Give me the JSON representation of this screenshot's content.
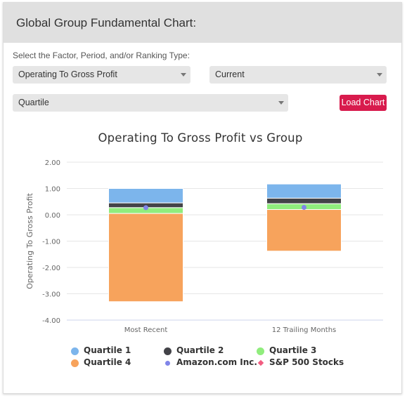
{
  "header": {
    "title": "Global Group Fundamental Chart:"
  },
  "controls": {
    "prompt": "Select the Factor, Period, and/or Ranking Type:",
    "factor_select": {
      "value": "Operating To Gross Profit"
    },
    "period_select": {
      "value": "Current"
    },
    "ranking_select": {
      "value": "Quartile"
    },
    "load_button": "Load Chart"
  },
  "colors": {
    "q1": "#7cb5ec",
    "q2": "#434348",
    "q3": "#90ed7d",
    "q4": "#f7a35c",
    "amazon": "#8085e9",
    "sp500": "#f15c80",
    "button": "#d81b4d"
  },
  "legend": [
    {
      "label": "Quartile 1",
      "color": "#7cb5ec",
      "marker": "circle"
    },
    {
      "label": "Quartile 2",
      "color": "#434348",
      "marker": "circle"
    },
    {
      "label": "Quartile 3",
      "color": "#90ed7d",
      "marker": "circle"
    },
    {
      "label": "Quartile 4",
      "color": "#f7a35c",
      "marker": "circle"
    },
    {
      "label": "Amazon.com Inc.",
      "color": "#8085e9",
      "marker": "dot"
    },
    {
      "label": "S&P 500 Stocks",
      "color": "#f15c80",
      "marker": "diamond"
    }
  ],
  "chart_data": {
    "type": "bar",
    "title": "Operating To Gross Profit vs Group",
    "ylabel": "Operating To Gross Profit",
    "xlabel": "",
    "ylim": [
      -4,
      2
    ],
    "yticks": [
      "2.00",
      "1.00",
      "0.00",
      "-1.00",
      "-2.00",
      "-3.00",
      "-4.00"
    ],
    "ytick_values": [
      2,
      1,
      0,
      -1,
      -2,
      -3,
      -4
    ],
    "categories": [
      "Most Recent",
      "12 Trailing Months"
    ],
    "grid": true,
    "legend_position": "bottom",
    "series": [
      {
        "name": "Quartile 1",
        "ranges": [
          [
            0.45,
            1.0
          ],
          [
            0.63,
            1.17
          ]
        ]
      },
      {
        "name": "Quartile 2",
        "ranges": [
          [
            0.27,
            0.45
          ],
          [
            0.42,
            0.63
          ]
        ]
      },
      {
        "name": "Quartile 3",
        "ranges": [
          [
            0.05,
            0.27
          ],
          [
            0.2,
            0.42
          ]
        ]
      },
      {
        "name": "Quartile 4",
        "ranges": [
          [
            -3.3,
            0.05
          ],
          [
            -1.38,
            0.2
          ]
        ]
      },
      {
        "name": "Amazon.com Inc.",
        "values": [
          0.27,
          0.28
        ]
      }
    ]
  }
}
